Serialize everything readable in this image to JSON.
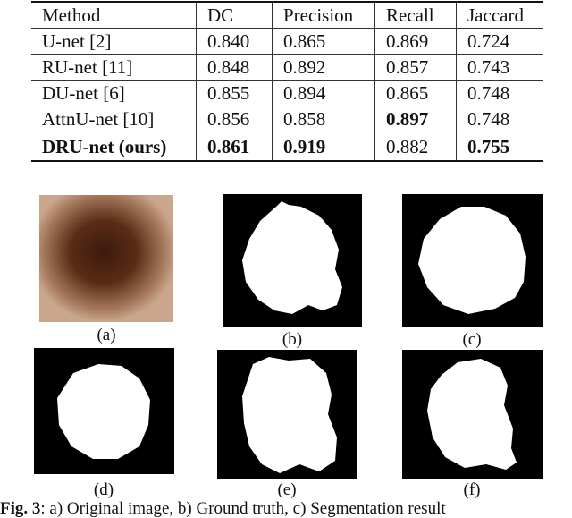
{
  "table": {
    "header": [
      "Method",
      "DC",
      "Precision",
      "Recall",
      "Jaccard"
    ],
    "rows": [
      [
        "U-net [2]",
        "0.840",
        "0.865",
        "0.869",
        "0.724"
      ],
      [
        "RU-net [11]",
        "0.848",
        "0.892",
        "0.857",
        "0.743"
      ],
      [
        "DU-net [6]",
        "0.855",
        "0.894",
        "0.865",
        "0.748"
      ],
      [
        "AttnU-net [10]",
        "0.856",
        "0.858",
        "0.897",
        "0.748"
      ],
      [
        "DRU-net (ours)",
        "0.861",
        "0.919",
        "0.882",
        "0.755"
      ]
    ]
  },
  "figure": {
    "labels": [
      "(a)",
      "(b)",
      "(c)",
      "(d)",
      "(e)",
      "(f)"
    ]
  },
  "caption": {
    "label": "Fig. 3",
    "text": ": a) Original image, b) Ground truth, c) Segmentation result"
  }
}
